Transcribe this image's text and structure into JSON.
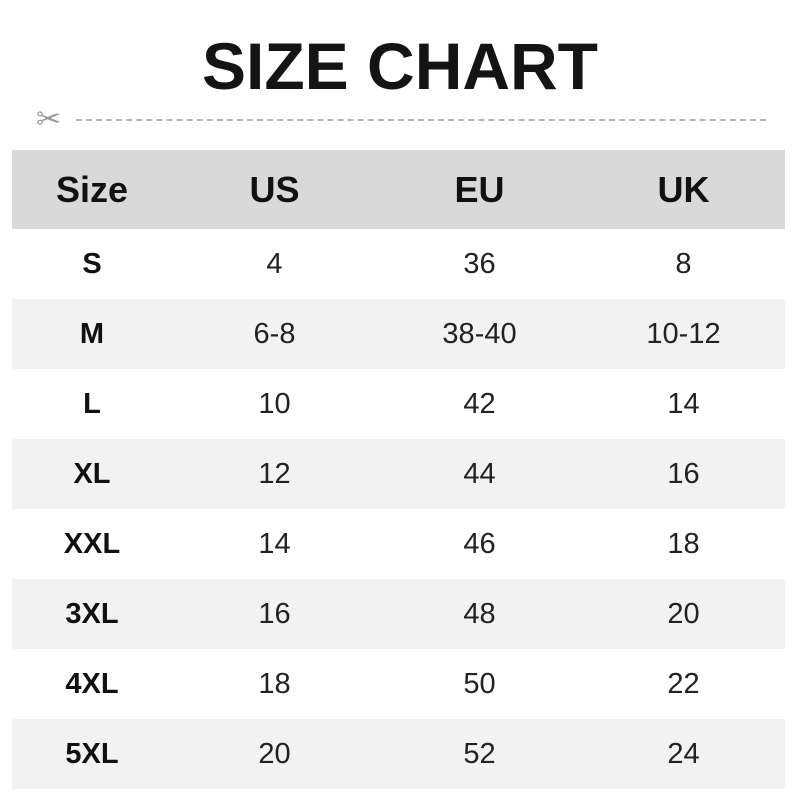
{
  "title": "SIZE CHART",
  "icons": {
    "cut": "scissors-icon"
  },
  "colors": {
    "header_bg": "#d9d9d9",
    "alt_row_bg": "#f2f2f2"
  },
  "chart_data": {
    "type": "table",
    "title": "SIZE CHART",
    "columns": [
      "Size",
      "US",
      "EU",
      "UK"
    ],
    "rows": [
      [
        "S",
        "4",
        "36",
        "8"
      ],
      [
        "M",
        "6-8",
        "38-40",
        "10-12"
      ],
      [
        "L",
        "10",
        "42",
        "14"
      ],
      [
        "XL",
        "12",
        "44",
        "16"
      ],
      [
        "XXL",
        "14",
        "46",
        "18"
      ],
      [
        "3XL",
        "16",
        "48",
        "20"
      ],
      [
        "4XL",
        "18",
        "50",
        "22"
      ],
      [
        "5XL",
        "20",
        "52",
        "24"
      ]
    ]
  }
}
